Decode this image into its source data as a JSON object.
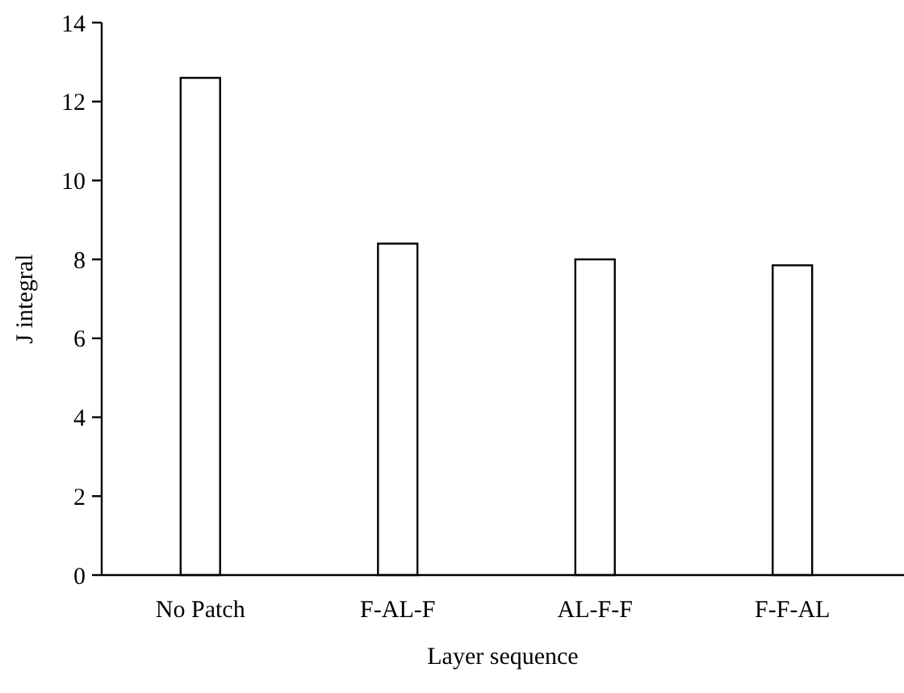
{
  "chart_data": {
    "type": "bar",
    "xlabel": "Layer sequence",
    "ylabel": "J integral",
    "categories": [
      "No Patch",
      "F-AL-F",
      "AL-F-F",
      "F-F-AL"
    ],
    "values": [
      12.6,
      8.4,
      8.0,
      7.85
    ],
    "color": "#ffffff",
    "ylim": [
      0,
      14
    ],
    "yticks": [
      0,
      2,
      4,
      6,
      8,
      10,
      12,
      14
    ],
    "grid": false
  }
}
